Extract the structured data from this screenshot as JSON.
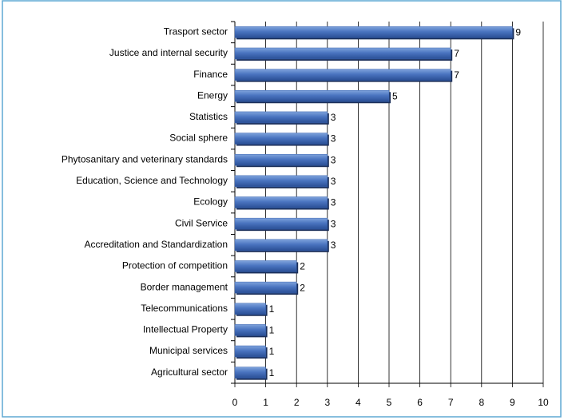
{
  "chart_data": {
    "type": "bar",
    "orientation": "horizontal",
    "categories": [
      "Trasport sector",
      "Justice and internal security",
      "Finance",
      "Energy",
      "Statistics",
      "Social sphere",
      "Phytosanitary and veterinary standards",
      "Education, Science and Technology",
      "Ecology",
      "Civil Service",
      "Accreditation and Standardization",
      "Protection of competition",
      "Border management",
      "Telecommunications",
      "Intellectual Property",
      "Municipal services",
      "Agricultural sector"
    ],
    "values": [
      9,
      7,
      7,
      5,
      3,
      3,
      3,
      3,
      3,
      3,
      3,
      2,
      2,
      1,
      1,
      1,
      1
    ],
    "color": "#3a64b0",
    "xlim": [
      0,
      10
    ],
    "xticks": [
      0,
      1,
      2,
      3,
      4,
      5,
      6,
      7,
      8,
      9,
      10
    ],
    "grid": true
  }
}
